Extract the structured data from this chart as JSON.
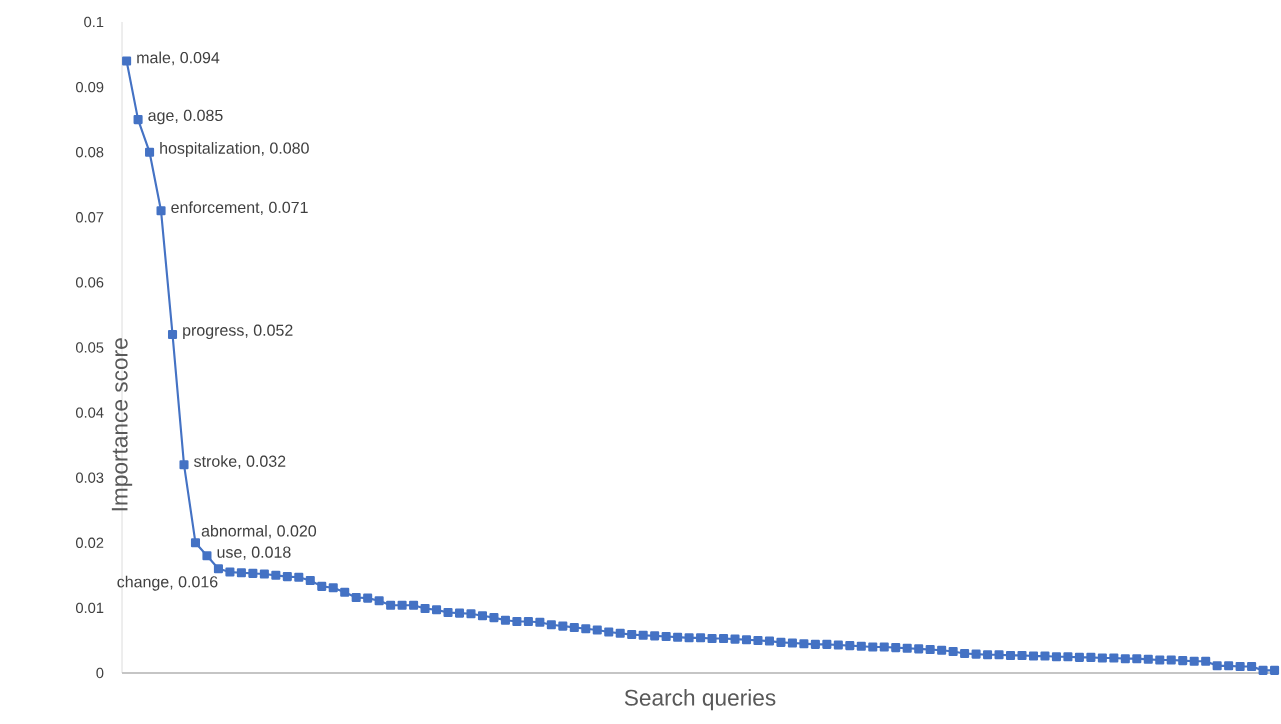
{
  "chart_data": {
    "type": "line",
    "xlabel": "Search queries",
    "ylabel": "Importance score",
    "color": "#4472c4",
    "marker": "square",
    "line_style": "solid",
    "grid": false,
    "ylim": [
      0,
      0.1
    ],
    "yticks": [
      0,
      0.01,
      0.02,
      0.03,
      0.04,
      0.05,
      0.06,
      0.07,
      0.08,
      0.09,
      0.1
    ],
    "categories": [
      null,
      null,
      null,
      null,
      null,
      null,
      null,
      null,
      null,
      null,
      null,
      null,
      null,
      null,
      null,
      null,
      null,
      null,
      null,
      null,
      null,
      null,
      null,
      null,
      null,
      null,
      null,
      null,
      null,
      null,
      null,
      null,
      null,
      null,
      null,
      null,
      null,
      null,
      null,
      null,
      null,
      null,
      null,
      null,
      null,
      null,
      null,
      null,
      null,
      null,
      null,
      null,
      null,
      null,
      null,
      null,
      null,
      null,
      null,
      null,
      null,
      null,
      null,
      null,
      null,
      null,
      null,
      null,
      null,
      null,
      null,
      null,
      null,
      null,
      null,
      null,
      null,
      null,
      null,
      null,
      null,
      null,
      null,
      null,
      null,
      null,
      null,
      null,
      null,
      null,
      null,
      null,
      null,
      null,
      null,
      null,
      null,
      null,
      null,
      null,
      null
    ],
    "values": [
      0.094,
      0.085,
      0.08,
      0.071,
      0.052,
      0.032,
      0.02,
      0.018,
      0.016,
      0.0155,
      0.0154,
      0.0153,
      0.0152,
      0.015,
      0.0148,
      0.0147,
      0.0142,
      0.0133,
      0.0131,
      0.0124,
      0.0116,
      0.0115,
      0.0111,
      0.0104,
      0.0104,
      0.0104,
      0.0099,
      0.0097,
      0.0093,
      0.0092,
      0.0091,
      0.0088,
      0.0085,
      0.0081,
      0.0079,
      0.0079,
      0.0078,
      0.0074,
      0.0072,
      0.007,
      0.0068,
      0.0066,
      0.0063,
      0.0061,
      0.0059,
      0.0058,
      0.0057,
      0.0056,
      0.0055,
      0.0054,
      0.0054,
      0.0053,
      0.0053,
      0.0052,
      0.0051,
      0.005,
      0.0049,
      0.0047,
      0.0046,
      0.0045,
      0.0044,
      0.0044,
      0.0043,
      0.0042,
      0.0041,
      0.004,
      0.004,
      0.0039,
      0.0038,
      0.0037,
      0.0036,
      0.0035,
      0.0033,
      0.003,
      0.0029,
      0.0028,
      0.0028,
      0.0027,
      0.0027,
      0.0026,
      0.0026,
      0.0025,
      0.0025,
      0.0024,
      0.0024,
      0.0023,
      0.0023,
      0.0022,
      0.0022,
      0.0021,
      0.002,
      0.002,
      0.0019,
      0.0018,
      0.0018,
      0.0011,
      0.0011,
      0.001,
      0.001,
      0.0004,
      0.0004
    ],
    "annotations": [
      "male, 0.094",
      "age, 0.085",
      "hospitalization, 0.080",
      "enforcement, 0.071",
      "progress, 0.052",
      "stroke, 0.032",
      "abnormal, 0.020",
      "use, 0.018",
      "change, 0.016"
    ]
  }
}
